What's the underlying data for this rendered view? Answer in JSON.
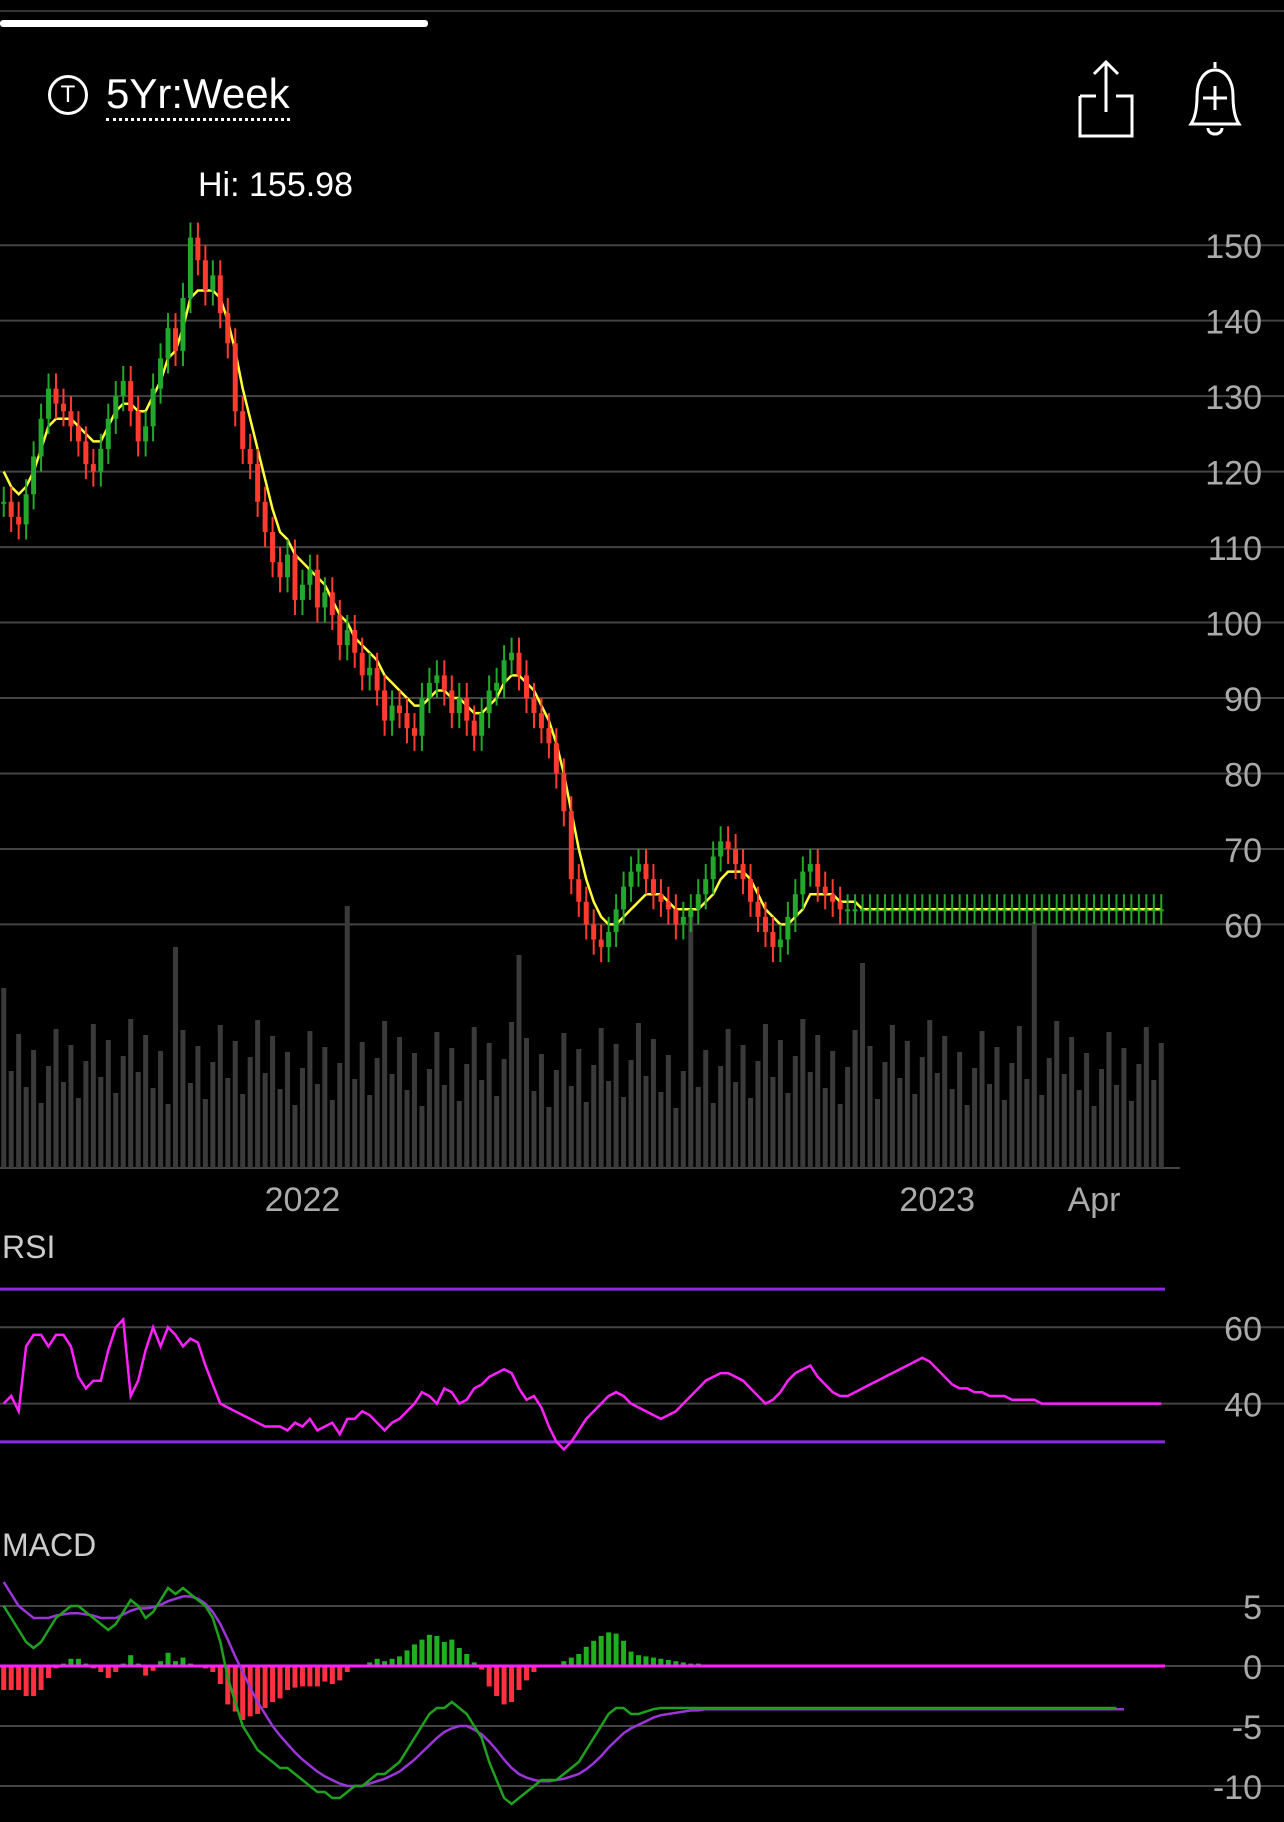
{
  "header": {
    "timeframe_icon": "T",
    "timeframe_label": "5Yr:Week",
    "share_icon": "share-icon",
    "alert_icon": "add-alert-bell-icon"
  },
  "colors": {
    "up_candle": "#22a82a",
    "down_candle": "#ff3b30",
    "sma_fast_yellow": "#ffff3c",
    "sma_blue": "#1a1aff",
    "sma_magenta": "#ff2d9a",
    "sma_orange": "#ff4a1a",
    "sma_cyan": "#27e6e6",
    "sma_lime": "#b4f030",
    "sma_gold": "#ffb020",
    "rsi_line": "#ff22ff",
    "rsi_bounds": "#8a2be2",
    "macd_line": "#1fa01f",
    "signal_line": "#9a35d8",
    "hist_up": "#1fb01f",
    "hist_down": "#ff3040",
    "volume": "#3a3a3a"
  },
  "chart_data": [
    {
      "type": "candlestick",
      "hi_label": "Hi: 155.98",
      "price_ticks": [
        "150",
        "140",
        "130",
        "120",
        "110",
        "100",
        "90",
        "80",
        "70",
        "60"
      ],
      "price_tick_values": [
        150,
        140,
        130,
        120,
        110,
        100,
        90,
        80,
        70,
        60
      ],
      "ylim": [
        48,
        154
      ],
      "x_labels": [
        "2022",
        "2023",
        "Apr"
      ],
      "x_label_weeks": [
        40,
        125,
        146
      ],
      "weeks": 156,
      "closes": [
        116,
        114,
        113,
        117,
        122,
        127,
        131,
        129,
        128,
        126,
        124,
        121,
        120,
        123,
        127,
        130,
        132,
        128,
        124,
        126,
        131,
        135,
        139,
        136,
        143,
        151,
        148,
        144,
        146,
        141,
        137,
        128,
        123,
        121,
        116,
        112,
        108,
        106,
        109,
        103,
        105,
        107,
        102,
        104,
        101,
        97,
        99,
        96,
        93,
        94,
        91,
        87,
        89,
        88,
        86,
        85,
        90,
        92,
        93,
        91,
        88,
        90,
        87,
        85,
        88,
        91,
        92,
        95,
        96,
        93,
        90,
        88,
        86,
        84,
        80,
        75,
        66,
        63,
        60,
        58,
        57,
        59,
        62,
        65,
        67,
        68,
        66,
        64,
        63,
        62,
        60,
        61,
        62,
        64,
        66,
        69,
        71,
        70,
        68,
        66,
        63,
        61,
        59,
        57,
        58,
        61,
        64,
        67,
        68,
        65,
        64,
        63,
        62,
        62,
        62,
        62,
        62,
        62,
        62,
        62,
        62,
        62,
        62,
        62,
        62,
        62,
        62,
        62,
        62,
        62,
        62,
        62,
        62,
        62,
        62,
        62,
        62,
        62,
        62,
        62,
        62,
        62,
        62,
        62,
        62,
        62,
        62,
        62,
        62,
        62,
        62,
        62,
        62,
        62,
        62,
        62
      ],
      "sma_fast": [
        120,
        118,
        117,
        118,
        120,
        123,
        126,
        127,
        127,
        127,
        126,
        125,
        124,
        124,
        126,
        128,
        129,
        129,
        128,
        128,
        130,
        132,
        135,
        136,
        139,
        143,
        144,
        144,
        144,
        143,
        140,
        136,
        131,
        127,
        123,
        119,
        115,
        112,
        111,
        109,
        108,
        107,
        106,
        105,
        103,
        101,
        100,
        98,
        97,
        96,
        95,
        93,
        92,
        91,
        90,
        89,
        89,
        90,
        91,
        91,
        90,
        90,
        89,
        88,
        88,
        89,
        90,
        92,
        93,
        93,
        92,
        91,
        89,
        87,
        84,
        80,
        75,
        70,
        66,
        63,
        61,
        60,
        60,
        61,
        62,
        63,
        64,
        64,
        64,
        63,
        62,
        62,
        62,
        62,
        63,
        64,
        66,
        67,
        67,
        67,
        66,
        64,
        62,
        61,
        60,
        60,
        61,
        62,
        64,
        64,
        64,
        64,
        63,
        63,
        63,
        62,
        62,
        62,
        62,
        62,
        62,
        62,
        62,
        62,
        62,
        62,
        62,
        62,
        62,
        62,
        62,
        62,
        62,
        62,
        62,
        62,
        62,
        62,
        62,
        62,
        62,
        62,
        62,
        62,
        62,
        62,
        62,
        62,
        62,
        62,
        62,
        62,
        62,
        62,
        62,
        62
      ]
    },
    {
      "type": "line",
      "name": "RSI",
      "title": "RSI",
      "ticks": [
        "60",
        "40"
      ],
      "tick_values": [
        60,
        40
      ],
      "ylim": [
        20,
        75
      ],
      "bounds": [
        70,
        30
      ],
      "values": [
        40,
        42,
        38,
        55,
        58,
        58,
        55,
        58,
        58,
        55,
        47,
        44,
        46,
        46,
        54,
        60,
        62,
        42,
        46,
        54,
        60,
        55,
        60,
        58,
        55,
        57,
        56,
        50,
        45,
        40,
        39,
        38,
        37,
        36,
        35,
        34,
        34,
        34,
        33,
        35,
        34,
        36,
        33,
        34,
        35,
        32,
        36,
        36,
        38,
        37,
        35,
        33,
        35,
        36,
        38,
        40,
        43,
        42,
        40,
        44,
        43,
        40,
        41,
        44,
        45,
        47,
        48,
        49,
        48,
        44,
        41,
        42,
        39,
        34,
        30,
        28,
        30,
        33,
        36,
        38,
        40,
        42,
        43,
        42,
        40,
        39,
        38,
        37,
        36,
        37,
        38,
        40,
        42,
        44,
        46,
        47,
        48,
        48,
        47,
        46,
        44,
        42,
        40,
        41,
        43,
        46,
        48,
        49,
        50,
        47,
        45,
        43,
        42,
        42,
        43,
        44,
        45,
        46,
        47,
        48,
        49,
        50,
        51,
        52,
        51,
        49,
        47,
        45,
        44,
        44,
        43,
        43,
        42,
        42,
        42,
        41,
        41,
        41,
        41,
        40,
        40,
        40,
        40,
        40,
        40,
        40,
        40,
        40,
        40,
        40,
        40,
        40,
        40,
        40,
        40,
        40
      ]
    },
    {
      "type": "line",
      "name": "MACD",
      "title": "MACD",
      "ticks": [
        "5",
        "0",
        "-5",
        "-10"
      ],
      "tick_values": [
        5,
        0,
        -5,
        -10
      ],
      "ylim": [
        -12,
        8
      ],
      "macd": [
        5,
        4,
        3,
        2,
        1.5,
        2,
        3,
        4,
        4.5,
        5,
        5,
        4.5,
        4,
        3.5,
        3,
        3.5,
        4.5,
        5.5,
        5,
        4,
        4.5,
        5.5,
        6.5,
        6,
        6.5,
        6,
        5.5,
        5,
        4,
        2,
        -1,
        -3,
        -5,
        -6,
        -7,
        -7.5,
        -8,
        -8.5,
        -8.5,
        -9,
        -9.5,
        -10,
        -10.5,
        -10.5,
        -11,
        -11,
        -10.5,
        -10,
        -10,
        -9.5,
        -9,
        -9,
        -8.5,
        -8,
        -7,
        -6,
        -5,
        -4,
        -3.5,
        -3.5,
        -3,
        -3.5,
        -4,
        -5,
        -6,
        -8,
        -9.5,
        -11,
        -11.5,
        -11,
        -10.5,
        -10,
        -9.5,
        -9.5,
        -9.5,
        -9,
        -8.5,
        -8,
        -7,
        -6,
        -5,
        -4,
        -3.5,
        -3.5,
        -4,
        -4,
        -3.8,
        -3.6,
        -3.5,
        -3.5,
        -3.5,
        -3.5,
        -3.5,
        -3.5,
        -3.5,
        -3.5,
        -3.5,
        -3.5,
        -3.5,
        -3.5,
        -3.5,
        -3.5,
        -3.5,
        -3.5,
        -3.5,
        -3.5,
        -3.5,
        -3.5,
        -3.5,
        -3.5,
        -3.5,
        -3.5,
        -3.5,
        -3.5,
        -3.5,
        -3.5,
        -3.5,
        -3.5,
        -3.5,
        -3.5,
        -3.5,
        -3.5,
        -3.5,
        -3.5,
        -3.5,
        -3.5,
        -3.5,
        -3.5,
        -3.5,
        -3.5,
        -3.5,
        -3.5,
        -3.5,
        -3.5,
        -3.5,
        -3.5,
        -3.5,
        -3.5,
        -3.5,
        -3.5,
        -3.5,
        -3.5,
        -3.5,
        -3.5,
        -3.5,
        -3.5,
        -3.5,
        -3.5,
        -3.5,
        -3.5
      ],
      "signal": [
        7,
        6,
        5,
        4.5,
        4,
        4,
        4,
        4.2,
        4.3,
        4.4,
        4.4,
        4.3,
        4.2,
        4,
        4,
        4,
        4.3,
        4.6,
        4.8,
        4.8,
        4.9,
        5.1,
        5.4,
        5.6,
        5.8,
        5.8,
        5.6,
        5.2,
        4.5,
        3.5,
        2.2,
        0.8,
        -0.5,
        -1.8,
        -3,
        -4,
        -5,
        -5.8,
        -6.5,
        -7.2,
        -7.8,
        -8.3,
        -8.8,
        -9.2,
        -9.5,
        -9.8,
        -10,
        -10,
        -10,
        -9.8,
        -9.6,
        -9.4,
        -9.1,
        -8.8,
        -8.3,
        -7.8,
        -7.2,
        -6.6,
        -6,
        -5.5,
        -5.2,
        -5,
        -5,
        -5.3,
        -5.7,
        -6.3,
        -7,
        -7.8,
        -8.5,
        -9,
        -9.3,
        -9.5,
        -9.6,
        -9.6,
        -9.5,
        -9.4,
        -9.2,
        -9,
        -8.6,
        -8.1,
        -7.5,
        -6.8,
        -6.2,
        -5.6,
        -5.2,
        -4.9,
        -4.6,
        -4.3,
        -4.1,
        -4,
        -3.9,
        -3.8,
        -3.7,
        -3.7,
        -3.6,
        -3.6,
        -3.6,
        -3.6,
        -3.6,
        -3.6,
        -3.6,
        -3.6,
        -3.6,
        -3.6,
        -3.6,
        -3.6,
        -3.6,
        -3.6,
        -3.6,
        -3.6,
        -3.6,
        -3.6,
        -3.6,
        -3.6,
        -3.6,
        -3.6,
        -3.6,
        -3.6,
        -3.6,
        -3.6,
        -3.6,
        -3.6,
        -3.6,
        -3.6,
        -3.6,
        -3.6,
        -3.6,
        -3.6,
        -3.6,
        -3.6,
        -3.6,
        -3.6,
        -3.6,
        -3.6,
        -3.6,
        -3.6,
        -3.6,
        -3.6,
        -3.6,
        -3.6,
        -3.6,
        -3.6,
        -3.6,
        -3.6,
        -3.6,
        -3.6,
        -3.6,
        -3.6,
        -3.6,
        -3.6,
        -3.6
      ]
    }
  ]
}
